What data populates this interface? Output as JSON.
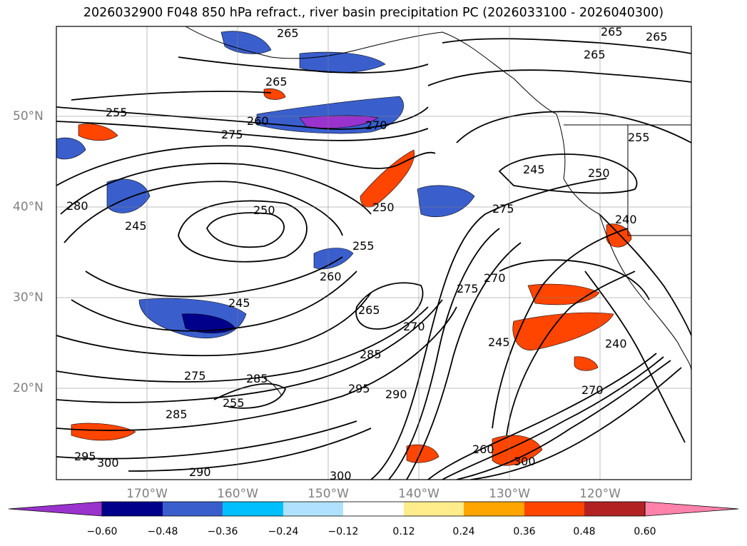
{
  "title": "2026032900 F048 850 hPa refract., river basin precipitation PC (2026033100 - 2026040300)",
  "map": {
    "lon_ticks": [
      "170°W",
      "160°W",
      "150°W",
      "140°W",
      "130°W",
      "120°W"
    ],
    "lat_ticks": [
      "50°N",
      "40°N",
      "30°N",
      "20°N"
    ],
    "gridlines": true,
    "contour_labels": [
      {
        "text": "265"
      },
      {
        "text": "265"
      },
      {
        "text": "265"
      },
      {
        "text": "265"
      },
      {
        "text": "265"
      },
      {
        "text": "255"
      },
      {
        "text": "260"
      },
      {
        "text": "270"
      },
      {
        "text": "275"
      },
      {
        "text": "280"
      },
      {
        "text": "250"
      },
      {
        "text": "245"
      },
      {
        "text": "250"
      },
      {
        "text": "255"
      },
      {
        "text": "260"
      },
      {
        "text": "245"
      },
      {
        "text": "245"
      },
      {
        "text": "250"
      },
      {
        "text": "275"
      },
      {
        "text": "275"
      },
      {
        "text": "265"
      },
      {
        "text": "270"
      },
      {
        "text": "270"
      },
      {
        "text": "245"
      },
      {
        "text": "285"
      },
      {
        "text": "295"
      },
      {
        "text": "290"
      },
      {
        "text": "275"
      },
      {
        "text": "285"
      },
      {
        "text": "255"
      },
      {
        "text": "285"
      },
      {
        "text": "295"
      },
      {
        "text": "300"
      },
      {
        "text": "290"
      },
      {
        "text": "300"
      },
      {
        "text": "260"
      },
      {
        "text": "300"
      },
      {
        "text": "240"
      },
      {
        "text": "270"
      },
      {
        "text": "240"
      },
      {
        "text": "255"
      }
    ]
  },
  "colorbar": {
    "labels": [
      "−0.60",
      "−0.48",
      "−0.36",
      "−0.24",
      "−0.12",
      "0.12",
      "0.24",
      "0.36",
      "0.48",
      "0.60"
    ],
    "colors": [
      "#9a32cd",
      "#00008b",
      "#3a5fcd",
      "#00bfff",
      "#b0e2ff",
      "#ffffff",
      "#ffec8b",
      "#ffa500",
      "#ff4500",
      "#b22222",
      "#ff82ab"
    ]
  }
}
